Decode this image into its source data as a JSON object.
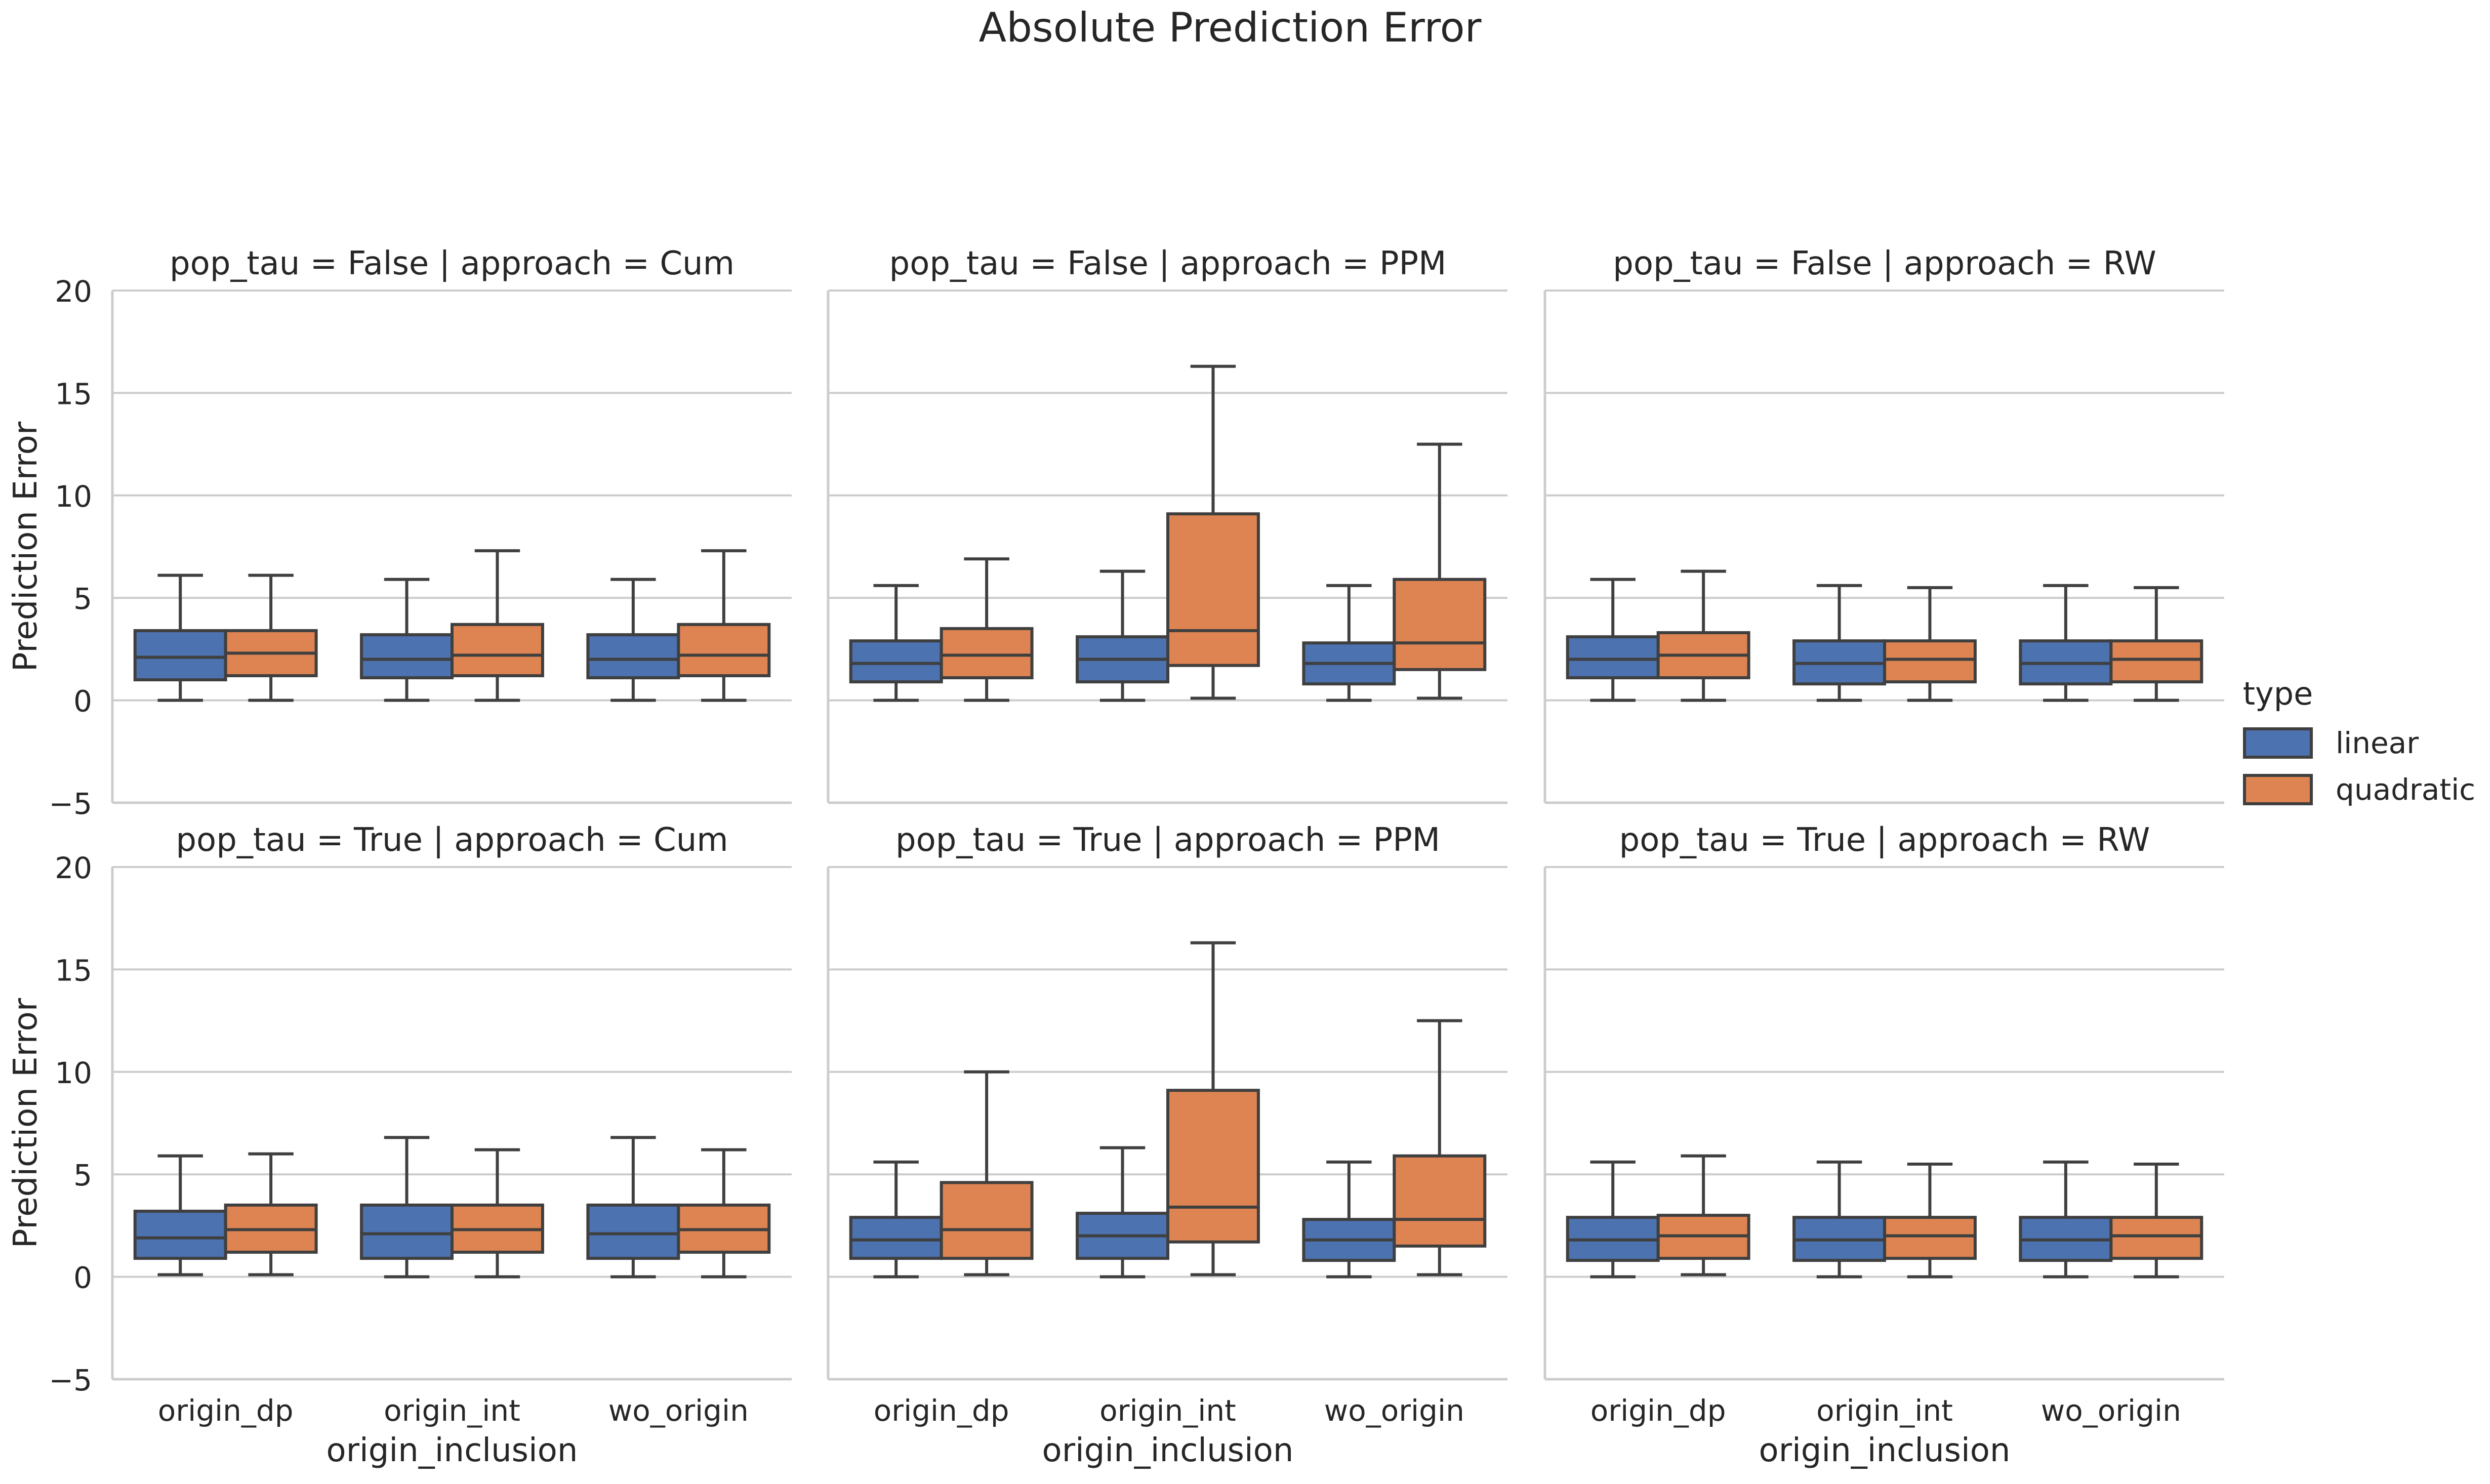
{
  "figure": {
    "title": "Absolute Prediction Error",
    "ylabel": "Prediction Error",
    "xlabel": "origin_inclusion"
  },
  "legend": {
    "title": "type",
    "items": [
      {
        "label": "linear",
        "color": "#4c72b0"
      },
      {
        "label": "quadratic",
        "color": "#dd8452"
      }
    ]
  },
  "chart_data": {
    "type": "box",
    "title": "Absolute Prediction Error",
    "xlabel": "origin_inclusion",
    "ylabel": "Prediction Error",
    "ylim": [
      -5,
      20
    ],
    "yticks": [
      -5,
      0,
      5,
      10,
      15,
      20
    ],
    "categories": [
      "origin_dp",
      "origin_int",
      "wo_origin"
    ],
    "hue": [
      "linear",
      "quadratic"
    ],
    "grid": "horizontal",
    "legend_position": "right",
    "facets": [
      {
        "title": "pop_tau = False | approach = Cum",
        "boxes": {
          "linear": [
            {
              "whislo": 0,
              "q1": 1.0,
              "med": 2.1,
              "q3": 3.4,
              "whishi": 6.1
            },
            {
              "whislo": 0,
              "q1": 1.1,
              "med": 2.0,
              "q3": 3.2,
              "whishi": 5.9
            },
            {
              "whislo": 0,
              "q1": 1.1,
              "med": 2.0,
              "q3": 3.2,
              "whishi": 5.9
            }
          ],
          "quadratic": [
            {
              "whislo": 0,
              "q1": 1.2,
              "med": 2.3,
              "q3": 3.4,
              "whishi": 6.1
            },
            {
              "whislo": 0,
              "q1": 1.2,
              "med": 2.2,
              "q3": 3.7,
              "whishi": 7.3
            },
            {
              "whislo": 0,
              "q1": 1.2,
              "med": 2.2,
              "q3": 3.7,
              "whishi": 7.3
            }
          ]
        }
      },
      {
        "title": "pop_tau = False | approach = PPM",
        "boxes": {
          "linear": [
            {
              "whislo": 0,
              "q1": 0.9,
              "med": 1.8,
              "q3": 2.9,
              "whishi": 5.6
            },
            {
              "whislo": 0,
              "q1": 0.9,
              "med": 2.0,
              "q3": 3.1,
              "whishi": 6.3
            },
            {
              "whislo": 0,
              "q1": 0.8,
              "med": 1.8,
              "q3": 2.8,
              "whishi": 5.6
            }
          ],
          "quadratic": [
            {
              "whislo": 0,
              "q1": 1.1,
              "med": 2.2,
              "q3": 3.5,
              "whishi": 6.9
            },
            {
              "whislo": 0.1,
              "q1": 1.7,
              "med": 3.4,
              "q3": 9.1,
              "whishi": 16.3
            },
            {
              "whislo": 0.1,
              "q1": 1.5,
              "med": 2.8,
              "q3": 5.9,
              "whishi": 12.5
            }
          ]
        }
      },
      {
        "title": "pop_tau = False | approach = RW",
        "boxes": {
          "linear": [
            {
              "whislo": 0,
              "q1": 1.1,
              "med": 2.0,
              "q3": 3.1,
              "whishi": 5.9
            },
            {
              "whislo": 0,
              "q1": 0.8,
              "med": 1.8,
              "q3": 2.9,
              "whishi": 5.6
            },
            {
              "whislo": 0,
              "q1": 0.8,
              "med": 1.8,
              "q3": 2.9,
              "whishi": 5.6
            }
          ],
          "quadratic": [
            {
              "whislo": 0,
              "q1": 1.1,
              "med": 2.2,
              "q3": 3.3,
              "whishi": 6.3
            },
            {
              "whislo": 0,
              "q1": 0.9,
              "med": 2.0,
              "q3": 2.9,
              "whishi": 5.5
            },
            {
              "whislo": 0,
              "q1": 0.9,
              "med": 2.0,
              "q3": 2.9,
              "whishi": 5.5
            }
          ]
        }
      },
      {
        "title": "pop_tau = True | approach = Cum",
        "boxes": {
          "linear": [
            {
              "whislo": 0.1,
              "q1": 0.9,
              "med": 1.9,
              "q3": 3.2,
              "whishi": 5.9
            },
            {
              "whislo": 0,
              "q1": 0.9,
              "med": 2.1,
              "q3": 3.5,
              "whishi": 6.8
            },
            {
              "whislo": 0,
              "q1": 0.9,
              "med": 2.1,
              "q3": 3.5,
              "whishi": 6.8
            }
          ],
          "quadratic": [
            {
              "whislo": 0.1,
              "q1": 1.2,
              "med": 2.3,
              "q3": 3.5,
              "whishi": 6.0
            },
            {
              "whislo": 0,
              "q1": 1.2,
              "med": 2.3,
              "q3": 3.5,
              "whishi": 6.2
            },
            {
              "whislo": 0,
              "q1": 1.2,
              "med": 2.3,
              "q3": 3.5,
              "whishi": 6.2
            }
          ]
        }
      },
      {
        "title": "pop_tau = True | approach = PPM",
        "boxes": {
          "linear": [
            {
              "whislo": 0,
              "q1": 0.9,
              "med": 1.8,
              "q3": 2.9,
              "whishi": 5.6
            },
            {
              "whislo": 0,
              "q1": 0.9,
              "med": 2.0,
              "q3": 3.1,
              "whishi": 6.3
            },
            {
              "whislo": 0,
              "q1": 0.8,
              "med": 1.8,
              "q3": 2.8,
              "whishi": 5.6
            }
          ],
          "quadratic": [
            {
              "whislo": 0.1,
              "q1": 0.9,
              "med": 2.3,
              "q3": 4.6,
              "whishi": 10.0
            },
            {
              "whislo": 0.1,
              "q1": 1.7,
              "med": 3.4,
              "q3": 9.1,
              "whishi": 16.3
            },
            {
              "whislo": 0.1,
              "q1": 1.5,
              "med": 2.8,
              "q3": 5.9,
              "whishi": 12.5
            }
          ]
        }
      },
      {
        "title": "pop_tau = True | approach = RW",
        "boxes": {
          "linear": [
            {
              "whislo": 0,
              "q1": 0.8,
              "med": 1.8,
              "q3": 2.9,
              "whishi": 5.6
            },
            {
              "whislo": 0,
              "q1": 0.8,
              "med": 1.8,
              "q3": 2.9,
              "whishi": 5.6
            },
            {
              "whislo": 0,
              "q1": 0.8,
              "med": 1.8,
              "q3": 2.9,
              "whishi": 5.6
            }
          ],
          "quadratic": [
            {
              "whislo": 0.1,
              "q1": 0.9,
              "med": 2.0,
              "q3": 3.0,
              "whishi": 5.9
            },
            {
              "whislo": 0,
              "q1": 0.9,
              "med": 2.0,
              "q3": 2.9,
              "whishi": 5.5
            },
            {
              "whislo": 0,
              "q1": 0.9,
              "med": 2.0,
              "q3": 2.9,
              "whishi": 5.5
            }
          ]
        }
      }
    ]
  }
}
